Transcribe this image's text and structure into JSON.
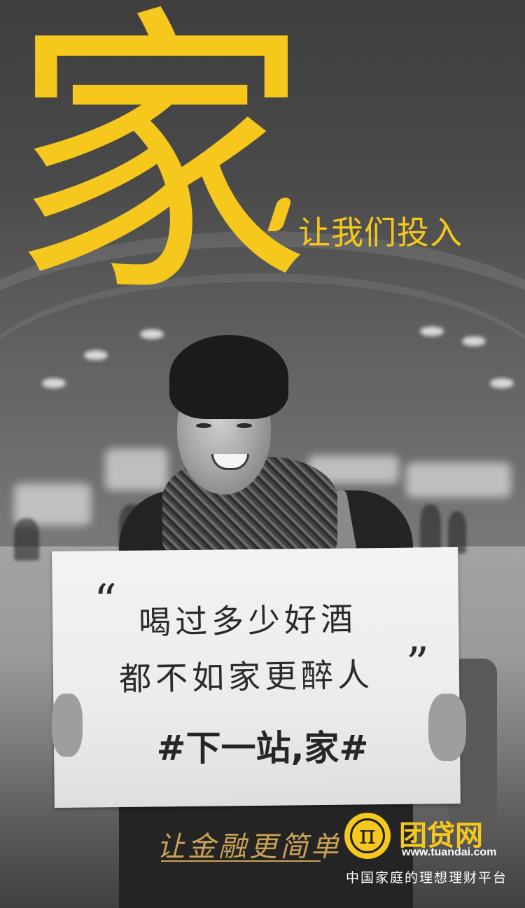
{
  "headline": {
    "big_char": "家",
    "subtitle": "让我们投入"
  },
  "sign": {
    "quote_open": "“",
    "line1": "喝过多少好酒",
    "line2": "都不如家更醉人",
    "quote_close": "”",
    "hashtag": "#下一站,家#"
  },
  "branding": {
    "slogan": "让金融更简单",
    "logo_symbol": "π",
    "brand_name": "团贷网",
    "url": "www.tuandai.com",
    "tagline": "中国家庭的理想理财平台"
  },
  "colors": {
    "accent_yellow": "#f6c71c",
    "slogan_gold": "#caa255"
  }
}
